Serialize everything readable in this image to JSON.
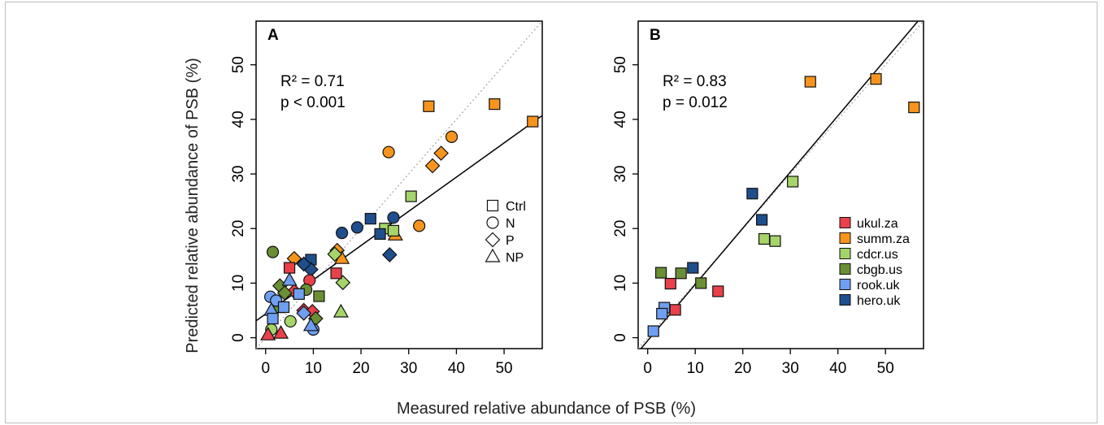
{
  "xlabel": "Measured relative abundance of PSB (%)",
  "ylabel": "Predicted relative abundance of PSB (%)",
  "colors": {
    "ukul.za": "#e8414a",
    "summ.za": "#f7941d",
    "cdcr.us": "#a5d46a",
    "cbgb.us": "#6a8f35",
    "rook.uk": "#6f9ff0",
    "hero.uk": "#1f4e8c"
  },
  "panels": [
    {
      "letter": "A",
      "stat_r2": "R² = 0.71",
      "stat_p": "p < 0.001",
      "shape_legend": [
        {
          "shape": "square",
          "label": "Ctrl"
        },
        {
          "shape": "circle",
          "label": "N"
        },
        {
          "shape": "diamond",
          "label": "P"
        },
        {
          "shape": "triangle",
          "label": "NP"
        }
      ]
    },
    {
      "letter": "B",
      "stat_r2": "R² = 0.83",
      "stat_p": "p = 0.012",
      "color_legend": [
        "ukul.za",
        "summ.za",
        "cdcr.us",
        "cbgb.us",
        "rook.uk",
        "hero.uk"
      ]
    }
  ],
  "chart_data": [
    {
      "type": "scatter",
      "panel": "A",
      "xlabel": "Measured relative abundance of PSB (%)",
      "ylabel": "Predicted relative abundance of PSB (%)",
      "xlim": [
        -2,
        58
      ],
      "ylim": [
        -2,
        58
      ],
      "xticks": [
        0,
        10,
        20,
        30,
        40,
        50
      ],
      "yticks": [
        0,
        10,
        20,
        30,
        40,
        50
      ],
      "identity_line": true,
      "fit_line": {
        "x": [
          -2,
          58
        ],
        "y": [
          3.1,
          40.7
        ]
      },
      "points": [
        {
          "x": 34.2,
          "y": 42.4,
          "site": "summ.za",
          "shape": "square"
        },
        {
          "x": 48.0,
          "y": 42.8,
          "site": "summ.za",
          "shape": "square"
        },
        {
          "x": 56.0,
          "y": 39.6,
          "site": "summ.za",
          "shape": "square"
        },
        {
          "x": 39.0,
          "y": 36.8,
          "site": "summ.za",
          "shape": "circle"
        },
        {
          "x": 25.8,
          "y": 34.0,
          "site": "summ.za",
          "shape": "circle"
        },
        {
          "x": 36.8,
          "y": 33.8,
          "site": "summ.za",
          "shape": "diamond"
        },
        {
          "x": 35.0,
          "y": 31.5,
          "site": "summ.za",
          "shape": "diamond"
        },
        {
          "x": 32.2,
          "y": 20.5,
          "site": "summ.za",
          "shape": "circle"
        },
        {
          "x": 15.0,
          "y": 16.0,
          "site": "summ.za",
          "shape": "diamond"
        },
        {
          "x": 6.0,
          "y": 14.5,
          "site": "summ.za",
          "shape": "diamond"
        },
        {
          "x": 16.0,
          "y": 14.5,
          "site": "summ.za",
          "shape": "triangle"
        },
        {
          "x": 27.2,
          "y": 18.8,
          "site": "summ.za",
          "shape": "triangle"
        },
        {
          "x": 30.5,
          "y": 25.9,
          "site": "cdcr.us",
          "shape": "square"
        },
        {
          "x": 25.0,
          "y": 20.0,
          "site": "cdcr.us",
          "shape": "square"
        },
        {
          "x": 26.8,
          "y": 19.6,
          "site": "cdcr.us",
          "shape": "square"
        },
        {
          "x": 14.5,
          "y": 15.3,
          "site": "cdcr.us",
          "shape": "diamond"
        },
        {
          "x": 16.2,
          "y": 10.1,
          "site": "cdcr.us",
          "shape": "diamond"
        },
        {
          "x": 15.8,
          "y": 4.7,
          "site": "cdcr.us",
          "shape": "triangle"
        },
        {
          "x": 5.2,
          "y": 3.0,
          "site": "cdcr.us",
          "shape": "circle"
        },
        {
          "x": 1.2,
          "y": 1.5,
          "site": "cdcr.us",
          "shape": "circle"
        },
        {
          "x": 22.0,
          "y": 21.8,
          "site": "hero.uk",
          "shape": "square"
        },
        {
          "x": 24.0,
          "y": 19.0,
          "site": "hero.uk",
          "shape": "square"
        },
        {
          "x": 26.8,
          "y": 22.0,
          "site": "hero.uk",
          "shape": "circle"
        },
        {
          "x": 19.2,
          "y": 20.2,
          "site": "hero.uk",
          "shape": "circle"
        },
        {
          "x": 16.0,
          "y": 19.2,
          "site": "hero.uk",
          "shape": "circle"
        },
        {
          "x": 26.0,
          "y": 15.2,
          "site": "hero.uk",
          "shape": "diamond"
        },
        {
          "x": 9.5,
          "y": 14.3,
          "site": "hero.uk",
          "shape": "square"
        },
        {
          "x": 9.5,
          "y": 12.5,
          "site": "hero.uk",
          "shape": "diamond"
        },
        {
          "x": 8.0,
          "y": 13.5,
          "site": "hero.uk",
          "shape": "diamond"
        },
        {
          "x": 5.0,
          "y": 12.8,
          "site": "ukul.za",
          "shape": "square"
        },
        {
          "x": 14.8,
          "y": 11.8,
          "site": "ukul.za",
          "shape": "square"
        },
        {
          "x": 9.2,
          "y": 10.5,
          "site": "ukul.za",
          "shape": "circle"
        },
        {
          "x": 8.0,
          "y": 5.0,
          "site": "ukul.za",
          "shape": "diamond"
        },
        {
          "x": 9.8,
          "y": 4.8,
          "site": "ukul.za",
          "shape": "diamond"
        },
        {
          "x": 6.0,
          "y": 8.5,
          "site": "ukul.za",
          "shape": "diamond"
        },
        {
          "x": 0.5,
          "y": 0.5,
          "site": "ukul.za",
          "shape": "triangle"
        },
        {
          "x": 3.2,
          "y": 0.8,
          "site": "ukul.za",
          "shape": "triangle"
        },
        {
          "x": 1.5,
          "y": 15.7,
          "site": "cbgb.us",
          "shape": "circle"
        },
        {
          "x": 11.2,
          "y": 7.6,
          "site": "cbgb.us",
          "shape": "square"
        },
        {
          "x": 3.0,
          "y": 9.5,
          "site": "cbgb.us",
          "shape": "diamond"
        },
        {
          "x": 4.0,
          "y": 8.2,
          "site": "cbgb.us",
          "shape": "diamond"
        },
        {
          "x": 8.5,
          "y": 8.8,
          "site": "cbgb.us",
          "shape": "circle"
        },
        {
          "x": 10.5,
          "y": 3.5,
          "site": "cbgb.us",
          "shape": "diamond"
        },
        {
          "x": 2.5,
          "y": 5.5,
          "site": "cbgb.us",
          "shape": "triangle"
        },
        {
          "x": 1.0,
          "y": 7.5,
          "site": "rook.uk",
          "shape": "circle"
        },
        {
          "x": 2.2,
          "y": 6.8,
          "site": "rook.uk",
          "shape": "circle"
        },
        {
          "x": 7.0,
          "y": 8.0,
          "site": "rook.uk",
          "shape": "square"
        },
        {
          "x": 3.8,
          "y": 5.6,
          "site": "rook.uk",
          "shape": "square"
        },
        {
          "x": 8.0,
          "y": 4.5,
          "site": "rook.uk",
          "shape": "diamond"
        },
        {
          "x": 10.0,
          "y": 1.5,
          "site": "rook.uk",
          "shape": "circle"
        },
        {
          "x": 9.5,
          "y": 2.2,
          "site": "rook.uk",
          "shape": "triangle"
        },
        {
          "x": 1.2,
          "y": 5.0,
          "site": "rook.uk",
          "shape": "triangle"
        },
        {
          "x": 5.0,
          "y": 10.5,
          "site": "rook.uk",
          "shape": "triangle"
        },
        {
          "x": 1.5,
          "y": 3.5,
          "site": "rook.uk",
          "shape": "square"
        }
      ]
    },
    {
      "type": "scatter",
      "panel": "B",
      "xlabel": "Measured relative abundance of PSB (%)",
      "ylabel": "Predicted relative abundance of PSB (%)",
      "xlim": [
        -2,
        58
      ],
      "ylim": [
        -2,
        58
      ],
      "xticks": [
        0,
        10,
        20,
        30,
        40,
        50
      ],
      "yticks": [
        0,
        10,
        20,
        30,
        40,
        50
      ],
      "identity_line": true,
      "fit_line": {
        "x": [
          -2,
          58
        ],
        "y": [
          -2.6,
          59.2
        ]
      },
      "points": [
        {
          "x": 34.2,
          "y": 46.9,
          "site": "summ.za",
          "shape": "square"
        },
        {
          "x": 48.0,
          "y": 47.4,
          "site": "summ.za",
          "shape": "square"
        },
        {
          "x": 56.0,
          "y": 42.2,
          "site": "summ.za",
          "shape": "square"
        },
        {
          "x": 30.5,
          "y": 28.6,
          "site": "cdcr.us",
          "shape": "square"
        },
        {
          "x": 24.5,
          "y": 18.1,
          "site": "cdcr.us",
          "shape": "square"
        },
        {
          "x": 26.8,
          "y": 17.7,
          "site": "cdcr.us",
          "shape": "square"
        },
        {
          "x": 22.0,
          "y": 26.4,
          "site": "hero.uk",
          "shape": "square"
        },
        {
          "x": 24.0,
          "y": 21.6,
          "site": "hero.uk",
          "shape": "square"
        },
        {
          "x": 9.5,
          "y": 12.8,
          "site": "hero.uk",
          "shape": "square"
        },
        {
          "x": 2.8,
          "y": 11.9,
          "site": "cbgb.us",
          "shape": "square"
        },
        {
          "x": 7.0,
          "y": 11.8,
          "site": "cbgb.us",
          "shape": "square"
        },
        {
          "x": 11.2,
          "y": 10.0,
          "site": "cbgb.us",
          "shape": "square"
        },
        {
          "x": 4.8,
          "y": 9.9,
          "site": "ukul.za",
          "shape": "square"
        },
        {
          "x": 14.8,
          "y": 8.5,
          "site": "ukul.za",
          "shape": "square"
        },
        {
          "x": 5.8,
          "y": 5.1,
          "site": "ukul.za",
          "shape": "square"
        },
        {
          "x": 3.5,
          "y": 5.5,
          "site": "rook.uk",
          "shape": "square"
        },
        {
          "x": 3.0,
          "y": 4.4,
          "site": "rook.uk",
          "shape": "square"
        },
        {
          "x": 1.2,
          "y": 1.2,
          "site": "rook.uk",
          "shape": "square"
        }
      ]
    }
  ]
}
